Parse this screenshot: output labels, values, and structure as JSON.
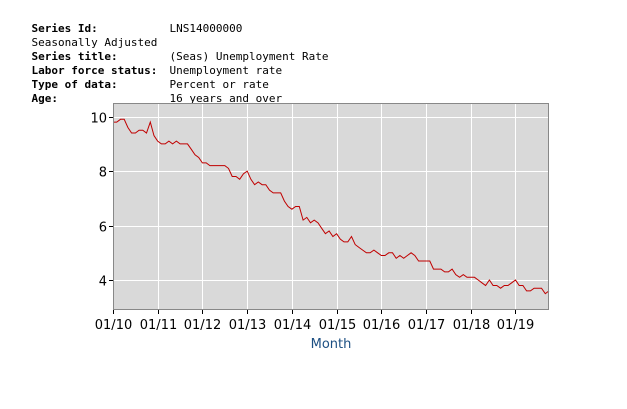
{
  "meta": {
    "series_id_label": "Series Id:",
    "series_id_value": "LNS14000000",
    "seasonal": "Seasonally Adjusted",
    "series_title_label": "Series title:",
    "series_title_value": "(Seas) Unemployment Rate",
    "labor_force_label": "Labor force status:",
    "labor_force_value": "Unemployment rate",
    "type_label": "Type of data:",
    "type_value": "Percent or rate",
    "age_label": "Age:",
    "age_value": "16 years and over"
  },
  "colors": {
    "line": "#c00000",
    "plot_bg": "#d9d9d9",
    "grid": "#ffffff",
    "axis_label": "#1c4f82"
  },
  "chart_data": {
    "type": "line",
    "title": "",
    "xlabel": "Month",
    "ylabel": "",
    "x_start": "2010-01",
    "x_end": "2019-10",
    "xticks": [
      "01/10",
      "01/11",
      "01/12",
      "01/13",
      "01/14",
      "01/15",
      "01/16",
      "01/17",
      "01/18",
      "01/19"
    ],
    "yticks": [
      4,
      6,
      8,
      10
    ],
    "ylim": [
      2.9,
      10.5
    ],
    "grid": true,
    "series": [
      {
        "name": "",
        "values": [
          9.8,
          9.8,
          9.9,
          9.9,
          9.6,
          9.4,
          9.4,
          9.5,
          9.5,
          9.4,
          9.8,
          9.3,
          9.1,
          9.0,
          9.0,
          9.1,
          9.0,
          9.1,
          9.0,
          9.0,
          9.0,
          8.8,
          8.6,
          8.5,
          8.3,
          8.3,
          8.2,
          8.2,
          8.2,
          8.2,
          8.2,
          8.1,
          7.8,
          7.8,
          7.7,
          7.9,
          8.0,
          7.7,
          7.5,
          7.6,
          7.5,
          7.5,
          7.3,
          7.2,
          7.2,
          7.2,
          6.9,
          6.7,
          6.6,
          6.7,
          6.7,
          6.2,
          6.3,
          6.1,
          6.2,
          6.1,
          5.9,
          5.7,
          5.8,
          5.6,
          5.7,
          5.5,
          5.4,
          5.4,
          5.6,
          5.3,
          5.2,
          5.1,
          5.0,
          5.0,
          5.1,
          5.0,
          4.9,
          4.9,
          5.0,
          5.0,
          4.8,
          4.9,
          4.8,
          4.9,
          5.0,
          4.9,
          4.7,
          4.7,
          4.7,
          4.7,
          4.4,
          4.4,
          4.4,
          4.3,
          4.3,
          4.4,
          4.2,
          4.1,
          4.2,
          4.1,
          4.1,
          4.1,
          4.0,
          3.9,
          3.8,
          4.0,
          3.8,
          3.8,
          3.7,
          3.8,
          3.8,
          3.9,
          4.0,
          3.8,
          3.8,
          3.6,
          3.6,
          3.7,
          3.7,
          3.7,
          3.5,
          3.6
        ]
      }
    ]
  }
}
